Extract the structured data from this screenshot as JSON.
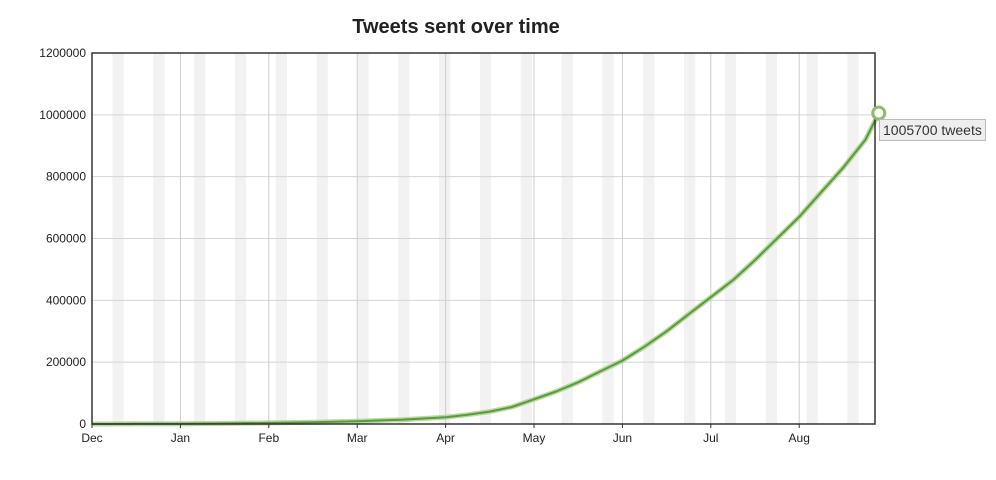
{
  "chart_data": {
    "type": "area",
    "title": "Tweets sent over time",
    "xlabel": "",
    "ylabel": "",
    "ylim": [
      0,
      1200000
    ],
    "yticks": [
      "0",
      "200000",
      "400000",
      "600000",
      "800000",
      "1000000",
      "1200000"
    ],
    "xticks": [
      "Dec",
      "Jan",
      "Feb",
      "Mar",
      "Apr",
      "May",
      "Jun",
      "Jul",
      "Aug"
    ],
    "grid": true,
    "x_months": [
      0,
      0.5,
      1,
      1.5,
      2,
      2.5,
      3,
      3.5,
      4,
      4.25,
      4.5,
      4.75,
      5,
      5.25,
      5.5,
      5.75,
      6,
      6.25,
      6.5,
      6.75,
      7,
      7.25,
      7.5,
      7.75,
      8,
      8.25,
      8.5,
      8.75,
      8.9
    ],
    "series": [
      {
        "values": [
          0,
          500,
          1000,
          2000,
          3500,
          5500,
          9000,
          14000,
          22000,
          30000,
          40000,
          55000,
          80000,
          105000,
          135000,
          170000,
          205000,
          250000,
          300000,
          355000,
          410000,
          465000,
          530000,
          600000,
          670000,
          750000,
          830000,
          920000,
          1005700
        ],
        "color": "#5a9a3a"
      }
    ],
    "tooltip": {
      "text": "1005700 tweets"
    }
  }
}
